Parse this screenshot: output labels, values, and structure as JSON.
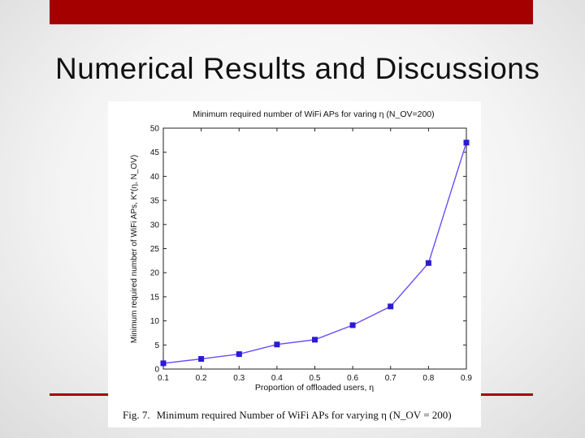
{
  "slide": {
    "title": "Numerical Results and Discussions"
  },
  "colors": {
    "accent": "#a50000",
    "series": "#6a4cff",
    "marker": "#2b1bd6"
  },
  "chart_data": {
    "type": "line",
    "title": "Minimum required number of WiFi APs for varing η (N_OV=200)",
    "xlabel": "Proportion of offloaded users, η",
    "ylabel": "Minimum required number of WiFi APs, K*(η, N_OV)",
    "x": [
      0.1,
      0.2,
      0.3,
      0.4,
      0.5,
      0.6,
      0.7,
      0.8,
      0.9
    ],
    "series": [
      {
        "values": [
          1.2,
          2.1,
          3.1,
          5.1,
          6.1,
          9.1,
          13.0,
          22.0,
          47.0
        ]
      }
    ],
    "xlim": [
      0.1,
      0.9
    ],
    "ylim": [
      0,
      50
    ],
    "xticks": [
      "0.1",
      "0.2",
      "0.3",
      "0.4",
      "0.5",
      "0.6",
      "0.7",
      "0.8",
      "0.9"
    ],
    "yticks": [
      "0",
      "5",
      "10",
      "15",
      "20",
      "25",
      "30",
      "35",
      "40",
      "45",
      "50"
    ],
    "grid": false,
    "marker": "square"
  },
  "caption": {
    "label": "Fig. 7.",
    "text": "Minimum required Number of WiFi APs for varying η (N_OV = 200)"
  }
}
